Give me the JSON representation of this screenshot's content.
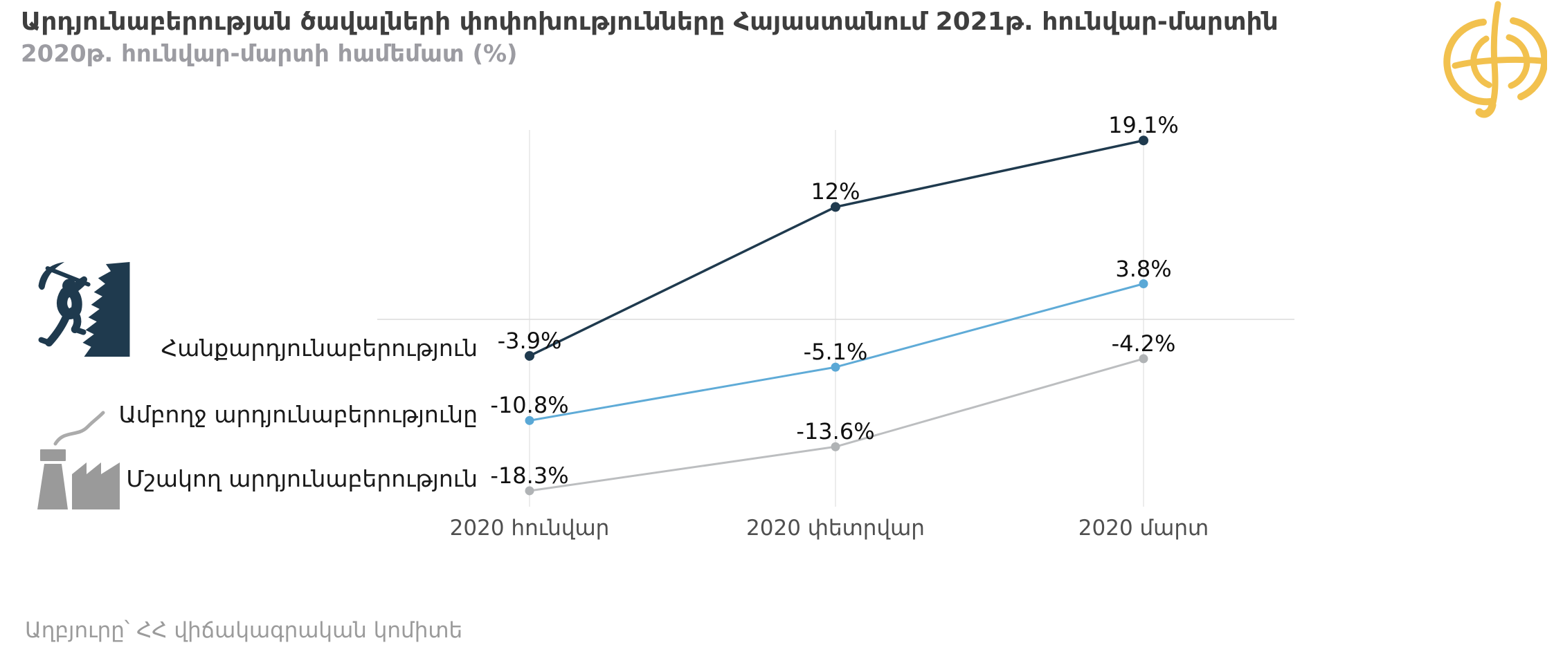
{
  "title": "Արդյունաբերության ծավալների փոփոխությունները Հայաստանում 2021թ. հունվար-մարտին",
  "subtitle": "2020թ. հունվար-մարտի համեմատ (%)",
  "source": "Աղբյուրը՝ ՀՀ վիճակագրական կոմիտե",
  "logo": {
    "icon": "ampop-globe-logo",
    "color": "#F2C14E"
  },
  "colors": {
    "mining_navy": "#1F3A4E",
    "total_blue": "#5FABD7",
    "manufacturing_gray": "#BCBEC0",
    "title_text": "#3E3E3E",
    "muted_text": "#9B9B9B",
    "gridline": "#E5E5E5",
    "zero_line": "#DCDCDC"
  },
  "legend": [
    {
      "label": "Հանքարդյունաբերություն",
      "icon": "miner-pickaxe-icon",
      "color": "#1F3A4E"
    },
    {
      "label": "Ամբողջ արդյունաբերությունը",
      "icon": "factory-smoke-icon",
      "color": "#5FABD7"
    },
    {
      "label": "Մշակող արդյունաբերություն",
      "icon": "factory-icon",
      "color": "#BCBEC0"
    }
  ],
  "chart_data": {
    "type": "line",
    "categories": [
      "2020 հունվար",
      "2020 փետրվար",
      "2020 մարտ"
    ],
    "series": [
      {
        "name": "Հանքարդյունաբերություն",
        "color": "#1F3A4E",
        "dot_color": "#1F3A4E",
        "values": [
          -3.9,
          12,
          19.1
        ],
        "labels": [
          "-3.9%",
          "12%",
          "19.1%"
        ]
      },
      {
        "name": "Ամբողջ արդյունաբերությունը",
        "color": "#5FABD7",
        "dot_color": "#5AA8D6",
        "values": [
          -10.8,
          -5.1,
          3.8
        ],
        "labels": [
          "-10.8%",
          "-5.1%",
          "3.8%"
        ]
      },
      {
        "name": "Մշակող արդյունաբերություն",
        "color": "#BCBEC0",
        "dot_color": "#B0B3B5",
        "values": [
          -18.3,
          -13.6,
          -4.2
        ],
        "labels": [
          "-18.3%",
          "-13.6%",
          "-4.2%"
        ]
      }
    ],
    "title": "Արդյունաբերության ծավալների փոփոխությունները Հայաստանում 2021թ. հունվար-մարտին",
    "xlabel": "",
    "ylabel": "",
    "ylim": [
      -20,
      20.5
    ],
    "grid": "vertical-per-category-plus-zero-line",
    "legend_position": "left",
    "data_labels": true
  }
}
